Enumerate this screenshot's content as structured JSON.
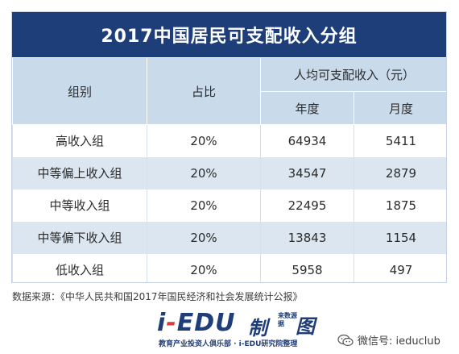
{
  "title": "2017中国居民可支配收入分组",
  "table": {
    "headers": {
      "group": "组别",
      "share": "占比",
      "income": "人均可支配收入（元）",
      "annual": "年度",
      "monthly": "月度"
    },
    "rows": [
      {
        "group": "高收入组",
        "share": "20%",
        "annual": "64934",
        "monthly": "5411"
      },
      {
        "group": "中等偏上收入组",
        "share": "20%",
        "annual": "34547",
        "monthly": "2879"
      },
      {
        "group": "中等收入组",
        "share": "20%",
        "annual": "22495",
        "monthly": "1875"
      },
      {
        "group": "中等偏下收入组",
        "share": "20%",
        "annual": "13843",
        "monthly": "1154"
      },
      {
        "group": "低收入组",
        "share": "20%",
        "annual": "5958",
        "monthly": "497"
      }
    ]
  },
  "footnote": "数据来源：《中华人民共和国2017年国民经济和社会发展统计公报》",
  "logo": {
    "main_prefix": "i",
    "main_dash": "-",
    "main_suffix": "EDU",
    "zhi": "制",
    "sub_small": "来数源据",
    "tu": "图",
    "tagline": "教育产业投资人俱乐部 · i-EDU研究院整理"
  },
  "wechat": {
    "icon": "wechat-icon",
    "text": "微信号: ieduclub"
  },
  "colors": {
    "title_bg": "#1e3e79",
    "header_bg": "#c9daeb",
    "stripe_bg": "#dbe6f1"
  }
}
